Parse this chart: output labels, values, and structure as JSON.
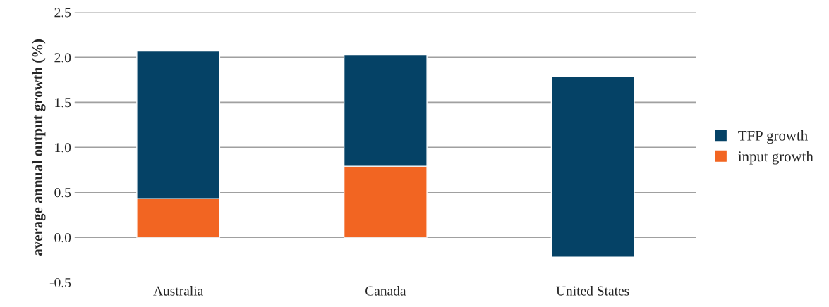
{
  "chart_data": {
    "type": "bar",
    "ylabel": "average annual output growth (%)",
    "categories": [
      "Australia",
      "Canada",
      "United States"
    ],
    "series": [
      {
        "name": "input growth",
        "color": "#f26522",
        "values": [
          0.43,
          0.79,
          null
        ],
        "base": [
          0,
          0,
          null
        ]
      },
      {
        "name": "TFP growth",
        "color": "#054266",
        "values": [
          1.64,
          1.24,
          2.01
        ],
        "base": [
          0.43,
          0.79,
          -0.22
        ]
      }
    ],
    "ylim": [
      -0.5,
      2.5
    ],
    "yticks": [
      {
        "value": -0.5,
        "label": "-0.5"
      },
      {
        "value": 0,
        "label": "0.0"
      },
      {
        "value": 0.5,
        "label": "0.5"
      },
      {
        "value": 1.0,
        "label": "1.0"
      },
      {
        "value": 1.5,
        "label": "1.5"
      },
      {
        "value": 2.0,
        "label": "2.0"
      },
      {
        "value": 2.5,
        "label": "2.5"
      }
    ],
    "grid": "y",
    "legend": "right"
  }
}
